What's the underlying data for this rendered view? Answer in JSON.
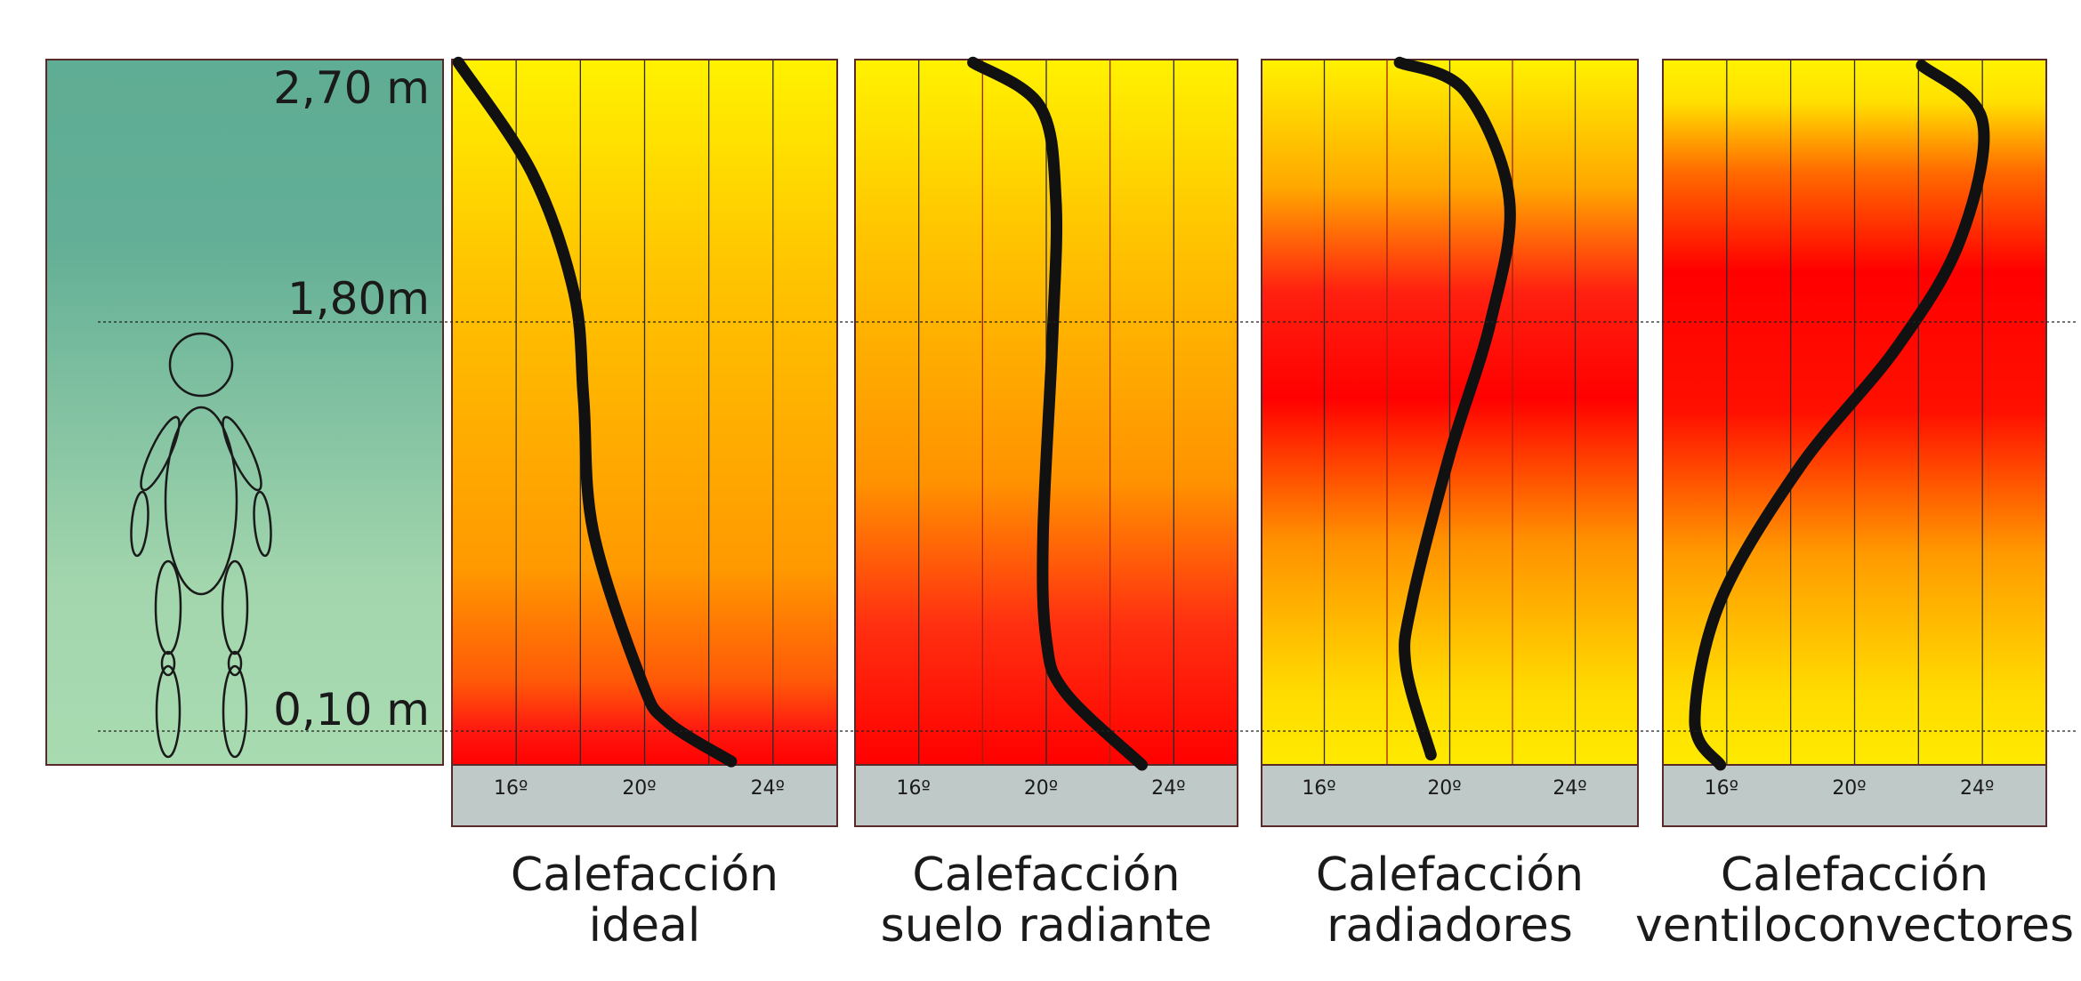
{
  "height_labels": {
    "top": "2,70 m",
    "head": "1,80m",
    "floor": "0,10 m"
  },
  "colors": {
    "panel_top": "#5fad94",
    "panel_bottom": "#a9dbb1",
    "yellow": "#fff200",
    "orange": "#ff9a00",
    "red": "#ff0000",
    "axis_bar": "#bfcac8",
    "curve": "#111111"
  },
  "figure_icon": "human-figure-outline",
  "chart_data": [
    {
      "type": "line",
      "title_line1": "Calefacción",
      "title_line2": "ideal",
      "x_tick_labels": [
        "16º",
        "20º",
        "24º"
      ],
      "x_ticks": [
        16,
        20,
        24
      ],
      "xlim": [
        14,
        26
      ],
      "ylim": [
        0,
        2.7
      ],
      "y_ticks": [
        0.1,
        1.8,
        2.7
      ],
      "gridlines": [
        16,
        18,
        20,
        22,
        24
      ],
      "points": [
        [
          14.2,
          2.69
        ],
        [
          16.5,
          2.31
        ],
        [
          17.8,
          1.9
        ],
        [
          18.1,
          1.48
        ],
        [
          18.4,
          0.93
        ],
        [
          19.9,
          0.31
        ],
        [
          20.7,
          0.14
        ],
        [
          22.7,
          0.01
        ]
      ]
    },
    {
      "type": "line",
      "title_line1": "Calefacción",
      "title_line2": "suelo radiante",
      "x_tick_labels": [
        "16º",
        "20º",
        "24º"
      ],
      "x_ticks": [
        16,
        20,
        24
      ],
      "xlim": [
        14,
        26
      ],
      "ylim": [
        0,
        2.7
      ],
      "y_ticks": [
        0.1,
        1.8,
        2.7
      ],
      "gridlines": [
        16,
        18,
        20,
        22,
        24
      ],
      "points": [
        [
          17.7,
          2.69
        ],
        [
          19.8,
          2.54
        ],
        [
          20.3,
          2.22
        ],
        [
          20.2,
          1.75
        ],
        [
          19.9,
          0.92
        ],
        [
          20.0,
          0.48
        ],
        [
          20.6,
          0.26
        ],
        [
          23.0,
          0.0
        ]
      ]
    },
    {
      "type": "line",
      "title_line1": "Calefacción",
      "title_line2": "radiadores",
      "x_tick_labels": [
        "16º",
        "20º",
        "24º"
      ],
      "x_ticks": [
        16,
        20,
        24
      ],
      "xlim": [
        14,
        26
      ],
      "ylim": [
        0,
        2.7
      ],
      "y_ticks": [
        0.1,
        1.8,
        2.7
      ],
      "gridlines": [
        16,
        18,
        20,
        22,
        24
      ],
      "points": [
        [
          18.4,
          2.69
        ],
        [
          20.5,
          2.59
        ],
        [
          21.9,
          2.22
        ],
        [
          21.3,
          1.8
        ],
        [
          20.0,
          1.25
        ],
        [
          18.8,
          0.64
        ],
        [
          18.6,
          0.37
        ],
        [
          19.4,
          0.03
        ]
      ]
    },
    {
      "type": "line",
      "title_line1": "Calefacción",
      "title_line2": "ventiloconvectores",
      "x_tick_labels": [
        "16º",
        "20º",
        "24º"
      ],
      "x_ticks": [
        16,
        20,
        24
      ],
      "xlim": [
        14,
        26
      ],
      "ylim": [
        0,
        2.7
      ],
      "y_ticks": [
        0.1,
        1.8,
        2.7
      ],
      "gridlines": [
        16,
        18,
        20,
        22,
        24
      ],
      "points": [
        [
          22.1,
          2.68
        ],
        [
          24.0,
          2.49
        ],
        [
          23.3,
          2.08
        ],
        [
          21.3,
          1.69
        ],
        [
          18.3,
          1.2
        ],
        [
          15.8,
          0.64
        ],
        [
          15.0,
          0.14
        ],
        [
          15.8,
          0.0
        ]
      ]
    }
  ]
}
